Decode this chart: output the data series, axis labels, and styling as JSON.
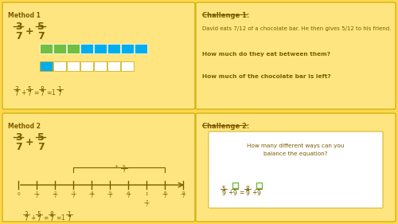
{
  "bg_yellow": "#FFD84D",
  "bg_yellow_light": "#FFE580",
  "bg_white": "#FFFFFF",
  "green_color": "#70BF41",
  "blue_color": "#00AEEF",
  "blue_dark": "#0070C0",
  "text_dark": "#7B5C00",
  "text_brown": "#5C4000",
  "outline_color": "#C8A800",
  "method1_title": "Method 1",
  "method2_title": "Method 2",
  "challenge1_title": "Challenge 1:",
  "challenge2_title": "Challenge 2:",
  "challenge1_line1": "David eats 7/12 of a chocolate bar. He then gives 5/12 to his friend.",
  "challenge1_line2": "How much do they eat between them?",
  "challenge1_line3": "How much of the chocolate bar is left?",
  "challenge2_text": "How many different ways can you\nbalance the equation?"
}
